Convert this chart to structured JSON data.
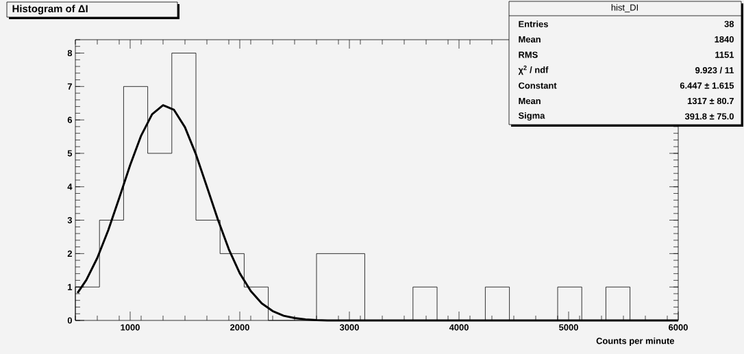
{
  "chart_data": {
    "type": "histogram",
    "title": "Histogram of ΔI",
    "xlabel": "Counts per minute",
    "bins": [
      500,
      720,
      940,
      1160,
      1380,
      1600,
      1820,
      2040,
      2260,
      2480,
      2700,
      2920,
      3140,
      3360,
      3580,
      3800,
      4020,
      4240,
      4460,
      4680,
      4900,
      5120,
      5340,
      5560,
      5780,
      6000
    ],
    "values": [
      1,
      3,
      7,
      5,
      8,
      3,
      2,
      1,
      0,
      0,
      2,
      2,
      0,
      0,
      1,
      0,
      0,
      1,
      0,
      0,
      1,
      0,
      1,
      0,
      0
    ],
    "color": "#000000",
    "series": [
      {
        "type": "line",
        "color": "#000000",
        "x": [
          520,
          600,
          700,
          800,
          900,
          1000,
          1100,
          1200,
          1300,
          1400,
          1500,
          1600,
          1700,
          1800,
          1900,
          2000,
          2100,
          2200,
          2300,
          2400,
          2500,
          2600,
          2700,
          2800,
          6000
        ],
        "values": [
          0.82,
          1.21,
          1.87,
          2.7,
          3.66,
          4.65,
          5.53,
          6.17,
          6.44,
          6.3,
          5.78,
          4.97,
          4.0,
          3.02,
          2.13,
          1.41,
          0.88,
          0.51,
          0.28,
          0.14,
          0.07,
          0.03,
          0.01,
          0,
          0
        ]
      }
    ],
    "xlim": [
      500,
      6000
    ],
    "ylim": [
      0,
      8.4
    ],
    "xticks": [
      1000,
      2000,
      3000,
      4000,
      5000,
      6000
    ],
    "yticks": [
      0,
      1,
      2,
      3,
      4,
      5,
      6,
      7,
      8
    ],
    "grid": false,
    "annotations": [
      "hist_DI",
      "Entries",
      "38",
      "Mean",
      "1840",
      "RMS",
      "1151",
      "χ$^{2}$ / ndf",
      "9.923 / 11",
      "Constant",
      "6.447 ± 1.615",
      "Mean",
      "1317 ± 80.7",
      "Sigma",
      "391.8 ± 75.0"
    ]
  }
}
